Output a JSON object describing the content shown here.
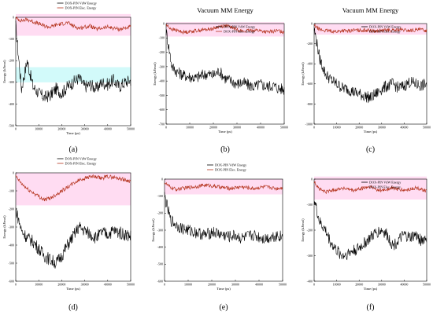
{
  "figure": {
    "chart_data": [
      {
        "id": "a",
        "type": "line",
        "panel_label": "(a)",
        "title": "",
        "xlabel": "Time (ps)",
        "ylabel": "Energy (kJ/mol)",
        "xlim": [
          0,
          50000
        ],
        "ylim": [
          -500,
          0
        ],
        "xticks": [
          0,
          10000,
          20000,
          30000,
          40000,
          50000
        ],
        "yticks": [
          0,
          -100,
          -200,
          -300,
          -400,
          -500
        ],
        "legend_position": "top-center",
        "series": [
          {
            "name": "DOX-PIN VdW Energy",
            "color": "#000000",
            "x": [
              0,
              2500,
              5000,
              7500,
              10000,
              12500,
              15000,
              17500,
              20000,
              22500,
              25000,
              27500,
              30000,
              32500,
              35000,
              37500,
              40000,
              42500,
              45000,
              47500,
              50000
            ],
            "y": [
              -40,
              -330,
              -200,
              -320,
              -350,
              -370,
              -360,
              -330,
              -350,
              -320,
              -300,
              -280,
              -320,
              -310,
              -330,
              -300,
              -310,
              -290,
              -320,
              -300,
              -290
            ]
          },
          {
            "name": "DOX-PIN Elec. Energy",
            "color": "#b5341e",
            "x": [
              0,
              2500,
              5000,
              7500,
              10000,
              12500,
              15000,
              17500,
              20000,
              22500,
              25000,
              27500,
              30000,
              32500,
              35000,
              37500,
              40000,
              42500,
              45000,
              47500,
              50000
            ],
            "y": [
              -5,
              -15,
              -10,
              -20,
              -30,
              -40,
              -45,
              -35,
              -30,
              -25,
              -40,
              -50,
              -45,
              -40,
              -55,
              -50,
              -45,
              -50,
              -55,
              -50,
              -45
            ]
          }
        ]
      },
      {
        "id": "b",
        "type": "line",
        "panel_label": "(b)",
        "title": "Vacuum MM Energy",
        "xlabel": "Time (ps)",
        "ylabel": "Energy (kJ/mol)",
        "xlim": [
          0,
          50000
        ],
        "ylim": [
          -700,
          0
        ],
        "xticks": [
          0,
          10000,
          20000,
          30000,
          40000,
          50000
        ],
        "yticks": [
          0,
          -100,
          -200,
          -300,
          -400,
          -500,
          -600,
          -700
        ],
        "legend_position": "top-right",
        "series": [
          {
            "name": "DOX-PIN VdW Energy",
            "color": "#000000",
            "x": [
              0,
              2500,
              5000,
              7500,
              10000,
              12500,
              15000,
              17500,
              20000,
              22500,
              25000,
              27500,
              30000,
              32500,
              35000,
              37500,
              40000,
              42500,
              45000,
              47500,
              50000
            ],
            "y": [
              -50,
              -300,
              -340,
              -360,
              -370,
              -380,
              -360,
              -350,
              -360,
              -330,
              -380,
              -400,
              -420,
              -410,
              -430,
              -440,
              -420,
              -440,
              -430,
              -450,
              -460
            ]
          },
          {
            "name": "DOX-PIN Elec. Energy",
            "color": "#b5341e",
            "x": [
              0,
              2500,
              5000,
              7500,
              10000,
              12500,
              15000,
              17500,
              20000,
              22500,
              25000,
              27500,
              30000,
              32500,
              35000,
              37500,
              40000,
              42500,
              45000,
              47500,
              50000
            ],
            "y": [
              -10,
              -40,
              -50,
              -60,
              -55,
              -50,
              -45,
              -40,
              -35,
              -20,
              -15,
              -25,
              -40,
              -55,
              -50,
              -45,
              -50,
              -60,
              -55,
              -50,
              -60
            ]
          }
        ]
      },
      {
        "id": "c",
        "type": "line",
        "panel_label": "(c)",
        "title": "Vacuum MM Energy",
        "xlabel": "Time (ps)",
        "ylabel": "Energy (kJ/mol)",
        "xlim": [
          0,
          50000
        ],
        "ylim": [
          -1000,
          0
        ],
        "xticks": [
          0,
          10000,
          20000,
          30000,
          40000,
          50000
        ],
        "yticks": [
          0,
          -200,
          -400,
          -600,
          -800,
          -1000
        ],
        "legend_position": "top-right",
        "series": [
          {
            "name": "DOX-PIN VdW Energy",
            "color": "#000000",
            "x": [
              0,
              2500,
              5000,
              7500,
              10000,
              12500,
              15000,
              17500,
              20000,
              22500,
              25000,
              27500,
              30000,
              32500,
              35000,
              37500,
              40000,
              42500,
              45000,
              47500,
              50000
            ],
            "y": [
              -50,
              -350,
              -500,
              -560,
              -600,
              -640,
              -650,
              -680,
              -700,
              -720,
              -740,
              -700,
              -650,
              -620,
              -600,
              -640,
              -620,
              -580,
              -600,
              -620,
              -600
            ]
          },
          {
            "name": "DOX-PIN Elec. Energy",
            "color": "#b5341e",
            "x": [
              0,
              2500,
              5000,
              7500,
              10000,
              12500,
              15000,
              17500,
              20000,
              22500,
              25000,
              27500,
              30000,
              32500,
              35000,
              37500,
              40000,
              42500,
              45000,
              47500,
              50000
            ],
            "y": [
              -20,
              -60,
              -70,
              -75,
              -80,
              -70,
              -75,
              -65,
              -70,
              -60,
              -70,
              -75,
              -70,
              -65,
              -70,
              -60,
              -65,
              -70,
              -65,
              -60,
              -70
            ]
          }
        ]
      },
      {
        "id": "d",
        "type": "line",
        "panel_label": "(d)",
        "title": "",
        "xlabel": "Time (ps)",
        "ylabel": "Energy (kJ/mol)",
        "xlim": [
          0,
          50000
        ],
        "ylim": [
          -600,
          0
        ],
        "xticks": [
          0,
          10000,
          20000,
          30000,
          40000,
          50000
        ],
        "yticks": [
          0,
          -100,
          -200,
          -300,
          -400,
          -500,
          -600
        ],
        "legend_position": "top-center",
        "series": [
          {
            "name": "DOX-PIN VdW Energy",
            "color": "#000000",
            "x": [
              0,
              2500,
              5000,
              7500,
              10000,
              12500,
              15000,
              17500,
              20000,
              22500,
              25000,
              27500,
              30000,
              32500,
              35000,
              37500,
              40000,
              42500,
              45000,
              47500,
              50000
            ],
            "y": [
              -200,
              -320,
              -360,
              -380,
              -420,
              -460,
              -480,
              -500,
              -460,
              -400,
              -350,
              -300,
              -320,
              -340,
              -360,
              -330,
              -340,
              -320,
              -330,
              -340,
              -350
            ]
          },
          {
            "name": "DOX-PIN Elec. Energy",
            "color": "#b5341e",
            "x": [
              0,
              2500,
              5000,
              7500,
              10000,
              12500,
              15000,
              17500,
              20000,
              22500,
              25000,
              27500,
              30000,
              32500,
              35000,
              37500,
              40000,
              42500,
              45000,
              47500,
              50000
            ],
            "y": [
              -20,
              -60,
              -90,
              -110,
              -130,
              -150,
              -140,
              -120,
              -100,
              -80,
              -60,
              -40,
              -30,
              -20,
              -25,
              -30,
              -20,
              -25,
              -30,
              -40,
              -45
            ]
          }
        ]
      },
      {
        "id": "e",
        "type": "line",
        "panel_label": "(e)",
        "title": "",
        "xlabel": "Time (ps)",
        "ylabel": "Energy (kJ/mol)",
        "xlim": [
          0,
          50000
        ],
        "ylim": [
          -600,
          0
        ],
        "xticks": [
          0,
          10000,
          20000,
          30000,
          40000,
          50000
        ],
        "yticks": [
          0,
          -100,
          -200,
          -300,
          -400,
          -500,
          -600
        ],
        "legend_position": "top-center",
        "series": [
          {
            "name": "DOX-PIN VdW Energy",
            "color": "#000000",
            "x": [
              0,
              2500,
              5000,
              7500,
              10000,
              12500,
              15000,
              17500,
              20000,
              22500,
              25000,
              27500,
              30000,
              32500,
              35000,
              37500,
              40000,
              42500,
              45000,
              47500,
              50000
            ],
            "y": [
              -100,
              -240,
              -270,
              -290,
              -300,
              -310,
              -320,
              -330,
              -310,
              -320,
              -330,
              -340,
              -330,
              -350,
              -340,
              -330,
              -340,
              -350,
              -340,
              -330,
              -340
            ]
          },
          {
            "name": "DOX-PIN Elec. Energy",
            "color": "#b5341e",
            "x": [
              0,
              2500,
              5000,
              7500,
              10000,
              12500,
              15000,
              17500,
              20000,
              22500,
              25000,
              27500,
              30000,
              32500,
              35000,
              37500,
              40000,
              42500,
              45000,
              47500,
              50000
            ],
            "y": [
              -20,
              -50,
              -60,
              -55,
              -50,
              -45,
              -40,
              -35,
              -40,
              -45,
              -50,
              -55,
              -50,
              -45,
              -50,
              -55,
              -50,
              -45,
              -50,
              -55,
              -50
            ]
          }
        ]
      },
      {
        "id": "f",
        "type": "line",
        "panel_label": "(f)",
        "title": "",
        "xlabel": "Time (ps)",
        "ylabel": "Energy (kJ/mol)",
        "xlim": [
          0,
          50000
        ],
        "ylim": [
          -400,
          0
        ],
        "xticks": [
          0,
          10000,
          20000,
          30000,
          40000,
          50000
        ],
        "yticks": [
          0,
          -100,
          -200,
          -300,
          -400
        ],
        "legend_position": "top-right",
        "series": [
          {
            "name": "DOX-PIN VdW Energy",
            "color": "#000000",
            "x": [
              0,
              2500,
              5000,
              7500,
              10000,
              12500,
              15000,
              17500,
              20000,
              22500,
              25000,
              27500,
              30000,
              32500,
              35000,
              37500,
              40000,
              42500,
              45000,
              47500,
              50000
            ],
            "y": [
              -80,
              -170,
              -200,
              -250,
              -280,
              -300,
              -290,
              -280,
              -270,
              -250,
              -230,
              -210,
              -200,
              -220,
              -260,
              -240,
              -220,
              -230,
              -220,
              -240,
              -230
            ]
          },
          {
            "name": "DOX-PIN Elec. Energy",
            "color": "#b5341e",
            "x": [
              0,
              2500,
              5000,
              7500,
              10000,
              12500,
              15000,
              17500,
              20000,
              22500,
              25000,
              27500,
              30000,
              32500,
              35000,
              37500,
              40000,
              42500,
              45000,
              47500,
              50000
            ],
            "y": [
              -10,
              -40,
              -50,
              -45,
              -40,
              -35,
              -40,
              -45,
              -40,
              -35,
              -30,
              -40,
              -45,
              -40,
              -35,
              -40,
              -45,
              -40,
              -35,
              -40,
              -45
            ]
          }
        ]
      }
    ]
  }
}
